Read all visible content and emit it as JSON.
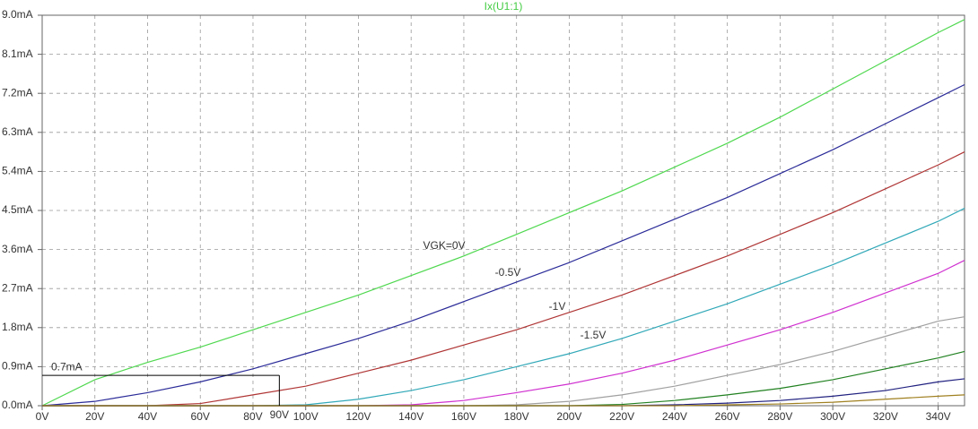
{
  "chart_data": {
    "type": "line",
    "title": "Ix(U1:1)",
    "title_color": "#44cc44",
    "x": [
      0,
      20,
      40,
      60,
      80,
      100,
      120,
      140,
      160,
      180,
      200,
      220,
      240,
      260,
      280,
      300,
      320,
      340,
      350
    ],
    "series": [
      {
        "name": "VGK=0V",
        "color": "#4fd84f",
        "values": [
          0,
          0.6,
          1.0,
          1.35,
          1.75,
          2.15,
          2.55,
          3.0,
          3.45,
          3.95,
          4.45,
          4.95,
          5.5,
          6.05,
          6.65,
          7.3,
          7.95,
          8.6,
          8.9
        ]
      },
      {
        "name": "-0.5V",
        "color": "#2b2b99",
        "values": [
          0,
          0.1,
          0.3,
          0.55,
          0.85,
          1.2,
          1.55,
          1.95,
          2.4,
          2.85,
          3.3,
          3.8,
          4.3,
          4.8,
          5.35,
          5.9,
          6.5,
          7.1,
          7.4
        ]
      },
      {
        "name": "-1V",
        "color": "#b03535",
        "values": [
          0,
          0,
          0,
          0.05,
          0.25,
          0.45,
          0.75,
          1.05,
          1.4,
          1.75,
          2.15,
          2.55,
          3.0,
          3.45,
          3.95,
          4.45,
          5.0,
          5.55,
          5.85
        ]
      },
      {
        "name": "-1.5V",
        "color": "#30a8b8",
        "values": [
          0,
          0,
          0,
          0,
          0,
          0.02,
          0.15,
          0.35,
          0.6,
          0.9,
          1.2,
          1.55,
          1.95,
          2.35,
          2.8,
          3.25,
          3.75,
          4.25,
          4.55
        ]
      },
      {
        "color": "#d030d0",
        "values": [
          0,
          0,
          0,
          0,
          0,
          0,
          0,
          0.02,
          0.12,
          0.3,
          0.5,
          0.75,
          1.05,
          1.4,
          1.75,
          2.15,
          2.6,
          3.05,
          3.35
        ]
      },
      {
        "color": "#a0a0a0",
        "values": [
          0,
          0,
          0,
          0,
          0,
          0,
          0,
          0,
          0,
          0.02,
          0.1,
          0.25,
          0.45,
          0.7,
          0.95,
          1.25,
          1.6,
          1.95,
          2.05
        ]
      },
      {
        "color": "#208020",
        "values": [
          0,
          0,
          0,
          0,
          0,
          0,
          0,
          0,
          0,
          0,
          0,
          0.03,
          0.12,
          0.25,
          0.4,
          0.6,
          0.85,
          1.1,
          1.25
        ]
      },
      {
        "color": "#202080",
        "values": [
          0,
          0,
          0,
          0,
          0,
          0,
          0,
          0,
          0,
          0,
          0,
          0,
          0.02,
          0.06,
          0.12,
          0.22,
          0.35,
          0.55,
          0.62
        ]
      },
      {
        "color": "#a08020",
        "values": [
          0,
          0,
          0,
          0,
          0,
          0,
          0,
          0,
          0,
          0,
          0,
          0,
          0,
          0.02,
          0.04,
          0.08,
          0.15,
          0.22,
          0.25
        ]
      }
    ],
    "xlim": [
      0,
      350
    ],
    "ylim": [
      0,
      9
    ],
    "xticks": [
      {
        "value": 0,
        "label": "0V"
      },
      {
        "value": 20,
        "label": "20V"
      },
      {
        "value": 40,
        "label": "40V"
      },
      {
        "value": 60,
        "label": "60V"
      },
      {
        "value": 80,
        "label": "80V"
      },
      {
        "value": 100,
        "label": "100V"
      },
      {
        "value": 120,
        "label": "120V"
      },
      {
        "value": 140,
        "label": "140V"
      },
      {
        "value": 160,
        "label": "160V"
      },
      {
        "value": 180,
        "label": "180V"
      },
      {
        "value": 200,
        "label": "200V"
      },
      {
        "value": 220,
        "label": "220V"
      },
      {
        "value": 240,
        "label": "240V"
      },
      {
        "value": 260,
        "label": "260V"
      },
      {
        "value": 280,
        "label": "280V"
      },
      {
        "value": 300,
        "label": "300V"
      },
      {
        "value": 320,
        "label": "320V"
      },
      {
        "value": 340,
        "label": "340V"
      }
    ],
    "yticks": [
      {
        "value": 0,
        "label": "0.0mA"
      },
      {
        "value": 0.9,
        "label": "0.9mA"
      },
      {
        "value": 1.8,
        "label": "1.8mA"
      },
      {
        "value": 2.7,
        "label": "2.7mA"
      },
      {
        "value": 3.6,
        "label": "3.6mA"
      },
      {
        "value": 4.5,
        "label": "4.5mA"
      },
      {
        "value": 5.4,
        "label": "5.4mA"
      },
      {
        "value": 6.3,
        "label": "6.3mA"
      },
      {
        "value": 7.2,
        "label": "7.2mA"
      },
      {
        "value": 8.1,
        "label": "8.1mA"
      },
      {
        "value": 9.0,
        "label": "9.0mA"
      }
    ],
    "grid": true,
    "marker": {
      "x": 90,
      "x_label": "90V",
      "y": 0.7,
      "y_label": "0.7mA"
    }
  }
}
